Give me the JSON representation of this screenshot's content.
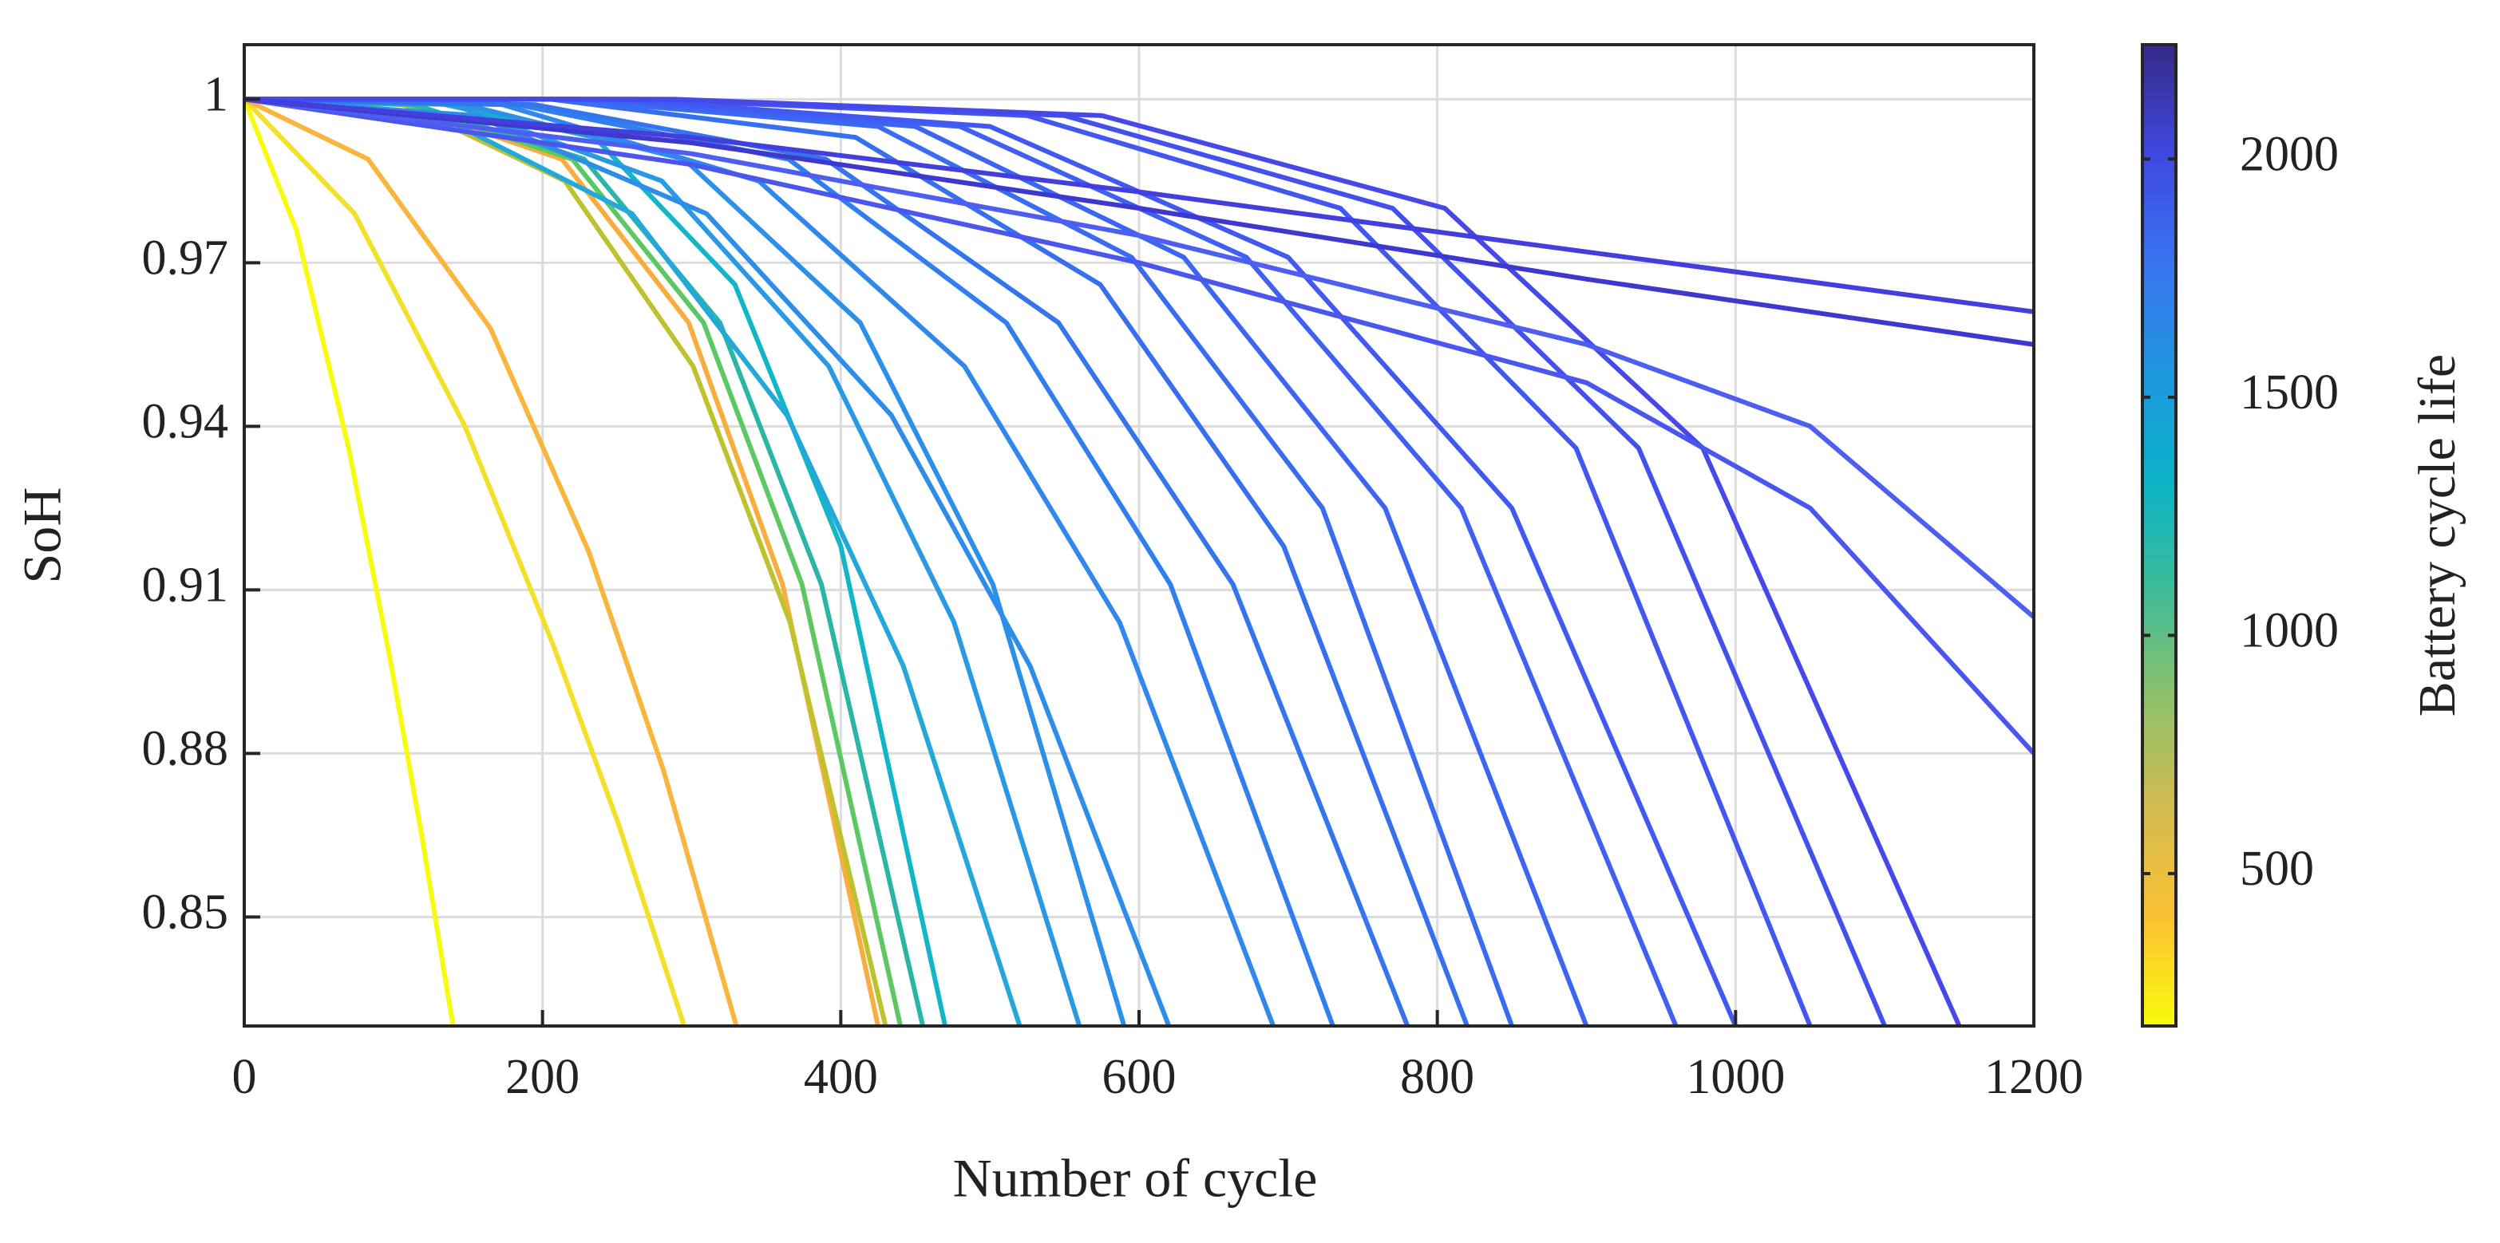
{
  "chart_data": {
    "type": "line",
    "xlabel": "Number of cycle",
    "ylabel": "SoH",
    "xlim": [
      0,
      1200
    ],
    "ylim": [
      0.83,
      1.01
    ],
    "xticks": [
      0,
      200,
      400,
      600,
      800,
      1000,
      1200
    ],
    "yticks": [
      0.85,
      0.88,
      0.91,
      0.94,
      0.97,
      1
    ],
    "grid": true,
    "series": [
      {
        "color": "#f9fb0e",
        "x": [
          0,
          35,
          70,
          98,
          119,
          140
        ],
        "values": [
          1,
          0.976,
          0.936,
          0.897,
          0.865,
          0.83
        ]
      },
      {
        "color": "#f2e029",
        "x": [
          0,
          74,
          148,
          207,
          251,
          295
        ],
        "values": [
          1,
          0.979,
          0.94,
          0.9,
          0.867,
          0.83
        ]
      },
      {
        "color": "#f9b53c",
        "x": [
          0,
          83,
          165,
          231,
          281,
          330
        ],
        "values": [
          1,
          0.989,
          0.958,
          0.917,
          0.877,
          0.83
        ]
      },
      {
        "color": "#f7ae3e",
        "x": [
          0,
          106,
          213,
          298,
          361,
          425
        ],
        "values": [
          1,
          0.999,
          0.989,
          0.959,
          0.911,
          0.83
        ]
      },
      {
        "color": "#bfc12f",
        "x": [
          0,
          108,
          215,
          301,
          366,
          430
        ],
        "values": [
          1,
          0.999,
          0.985,
          0.951,
          0.904,
          0.83
        ]
      },
      {
        "color": "#5cc863",
        "x": [
          0,
          110,
          220,
          308,
          374,
          440
        ],
        "values": [
          1,
          0.999,
          0.989,
          0.959,
          0.911,
          0.83
        ]
      },
      {
        "color": "#2ab5a6",
        "x": [
          0,
          114,
          228,
          319,
          387,
          455
        ],
        "values": [
          1,
          0.999,
          0.989,
          0.959,
          0.911,
          0.83
        ]
      },
      {
        "color": "#13b5c8",
        "x": [
          0,
          118,
          235,
          329,
          400,
          470
        ],
        "values": [
          1,
          1,
          0.993,
          0.966,
          0.918,
          0.83
        ]
      },
      {
        "color": "#23a8d9",
        "x": [
          0,
          130,
          260,
          364,
          442,
          520
        ],
        "values": [
          1,
          0.997,
          0.979,
          0.942,
          0.896,
          0.83
        ]
      },
      {
        "color": "#2a99e4",
        "x": [
          0,
          140,
          280,
          392,
          476,
          560
        ],
        "values": [
          1,
          0.999,
          0.985,
          0.951,
          0.904,
          0.83
        ]
      },
      {
        "color": "#2c90e8",
        "x": [
          0,
          148,
          295,
          413,
          502,
          590
        ],
        "values": [
          1,
          0.999,
          0.989,
          0.959,
          0.911,
          0.83
        ]
      },
      {
        "color": "#2e8de8",
        "x": [
          0,
          155,
          310,
          434,
          527,
          620
        ],
        "values": [
          1,
          0.997,
          0.979,
          0.942,
          0.896,
          0.83
        ]
      },
      {
        "color": "#3087ec",
        "x": [
          0,
          173,
          345,
          483,
          587,
          690
        ],
        "values": [
          1,
          0.999,
          0.985,
          0.951,
          0.904,
          0.83
        ]
      },
      {
        "color": "#317fee",
        "x": [
          0,
          183,
          365,
          511,
          621,
          730
        ],
        "values": [
          1,
          0.999,
          0.989,
          0.959,
          0.911,
          0.83
        ]
      },
      {
        "color": "#3475ee",
        "x": [
          0,
          195,
          390,
          546,
          663,
          780
        ],
        "values": [
          1,
          0.999,
          0.989,
          0.959,
          0.911,
          0.83
        ]
      },
      {
        "color": "#3670ef",
        "x": [
          0,
          205,
          410,
          574,
          697,
          820
        ],
        "values": [
          1,
          1,
          0.993,
          0.966,
          0.918,
          0.83
        ]
      },
      {
        "color": "#3a6cf0",
        "x": [
          0,
          213,
          425,
          595,
          723,
          850
        ],
        "values": [
          1,
          1,
          0.995,
          0.971,
          0.925,
          0.83
        ]
      },
      {
        "color": "#3c66f2",
        "x": [
          0,
          225,
          450,
          630,
          765,
          900
        ],
        "values": [
          1,
          1,
          0.995,
          0.971,
          0.925,
          0.83
        ]
      },
      {
        "color": "#4060f2",
        "x": [
          0,
          240,
          480,
          672,
          816,
          960
        ],
        "values": [
          1,
          1,
          0.995,
          0.971,
          0.925,
          0.83
        ]
      },
      {
        "color": "#4158f1",
        "x": [
          0,
          250,
          500,
          700,
          850,
          1000
        ],
        "values": [
          1,
          1,
          0.995,
          0.971,
          0.925,
          0.83
        ]
      },
      {
        "color": "#4257f0",
        "x": [
          0,
          263,
          525,
          735,
          893,
          1050
        ],
        "values": [
          1,
          1,
          0.997,
          0.98,
          0.936,
          0.83
        ]
      },
      {
        "color": "#4350ee",
        "x": [
          0,
          275,
          550,
          770,
          935,
          1100
        ],
        "values": [
          1,
          1,
          0.997,
          0.98,
          0.936,
          0.83
        ]
      },
      {
        "color": "#4649e8",
        "x": [
          0,
          288,
          575,
          805,
          978,
          1150
        ],
        "values": [
          1,
          1,
          0.997,
          0.98,
          0.936,
          0.83
        ]
      },
      {
        "color": "#4a56ee",
        "x": [
          0,
          300,
          600,
          900,
          1050,
          1200
        ],
        "values": [
          1,
          0.988,
          0.97,
          0.948,
          0.925,
          0.88
        ]
      },
      {
        "color": "#4d5ef0",
        "x": [
          0,
          300,
          600,
          900,
          1050,
          1200
        ],
        "values": [
          1,
          0.99,
          0.975,
          0.955,
          0.94,
          0.905
        ]
      },
      {
        "color": "#3f38cf",
        "x": [
          0,
          300,
          600,
          900,
          1200
        ],
        "values": [
          1,
          0.992,
          0.98,
          0.967,
          0.955
        ]
      },
      {
        "color": "#433fdd",
        "x": [
          0,
          300,
          600,
          900,
          1200
        ],
        "values": [
          1,
          0.993,
          0.983,
          0.972,
          0.961
        ]
      }
    ],
    "colorbar": {
      "label": "Battery cycle life",
      "clim": [
        180,
        2240
      ],
      "ticks": [
        500,
        1000,
        1500,
        2000
      ],
      "colormap": [
        "#352a87",
        "#3f48e0",
        "#3a73ef",
        "#1e96df",
        "#0bb3c8",
        "#3dbc98",
        "#8fc16a",
        "#d3bb4f",
        "#fbc133",
        "#f9fb0e"
      ]
    }
  }
}
